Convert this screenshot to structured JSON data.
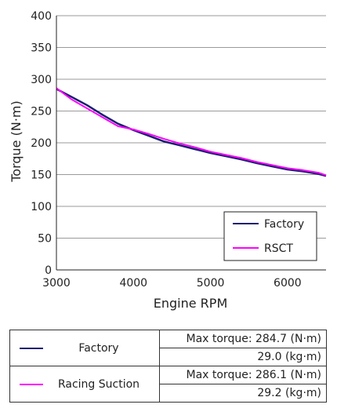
{
  "chart_data": {
    "type": "line",
    "xlabel": "Engine RPM",
    "ylabel": "Torque (N·m)",
    "xlim": [
      3000,
      6500
    ],
    "ylim": [
      0,
      400
    ],
    "x_ticks": [
      "3000",
      "4000",
      "5000",
      "6000"
    ],
    "y_ticks": [
      "0",
      "50",
      "100",
      "150",
      "200",
      "250",
      "300",
      "350",
      "400"
    ],
    "grid": "horizontal",
    "legend_position": "bottom-right",
    "series": [
      {
        "name": "Factory",
        "color": "#1a1f71",
        "x": [
          3000,
          3200,
          3400,
          3600,
          3800,
          4000,
          4200,
          4400,
          4600,
          4800,
          5000,
          5200,
          5400,
          5600,
          5800,
          6000,
          6200,
          6400,
          6500
        ],
        "y": [
          284.7,
          272,
          259,
          244,
          230,
          220,
          211,
          202,
          196,
          190,
          184,
          179,
          174,
          168,
          163,
          158,
          155,
          151,
          148
        ]
      },
      {
        "name": "RSCT",
        "color": "#ff00ff",
        "x": [
          3000,
          3200,
          3400,
          3600,
          3800,
          4000,
          4200,
          4400,
          4600,
          4800,
          5000,
          5200,
          5400,
          5600,
          5800,
          6000,
          6200,
          6400,
          6500
        ],
        "y": [
          286.1,
          268,
          254,
          240,
          226,
          221,
          214,
          206,
          199,
          193,
          186,
          181,
          176,
          170,
          165,
          160,
          157,
          153,
          149
        ]
      }
    ]
  },
  "summary_table": [
    {
      "label": "Factory",
      "color": "#1a1f71",
      "max_torque_nm": "Max torque: 284.7 (N·m)",
      "max_torque_kgm": "29.0 (kg·m)"
    },
    {
      "label": "Racing Suction",
      "color": "#ff00ff",
      "max_torque_nm": "Max torque: 286.1 (N·m)",
      "max_torque_kgm": "29.2 (kg·m)"
    }
  ]
}
